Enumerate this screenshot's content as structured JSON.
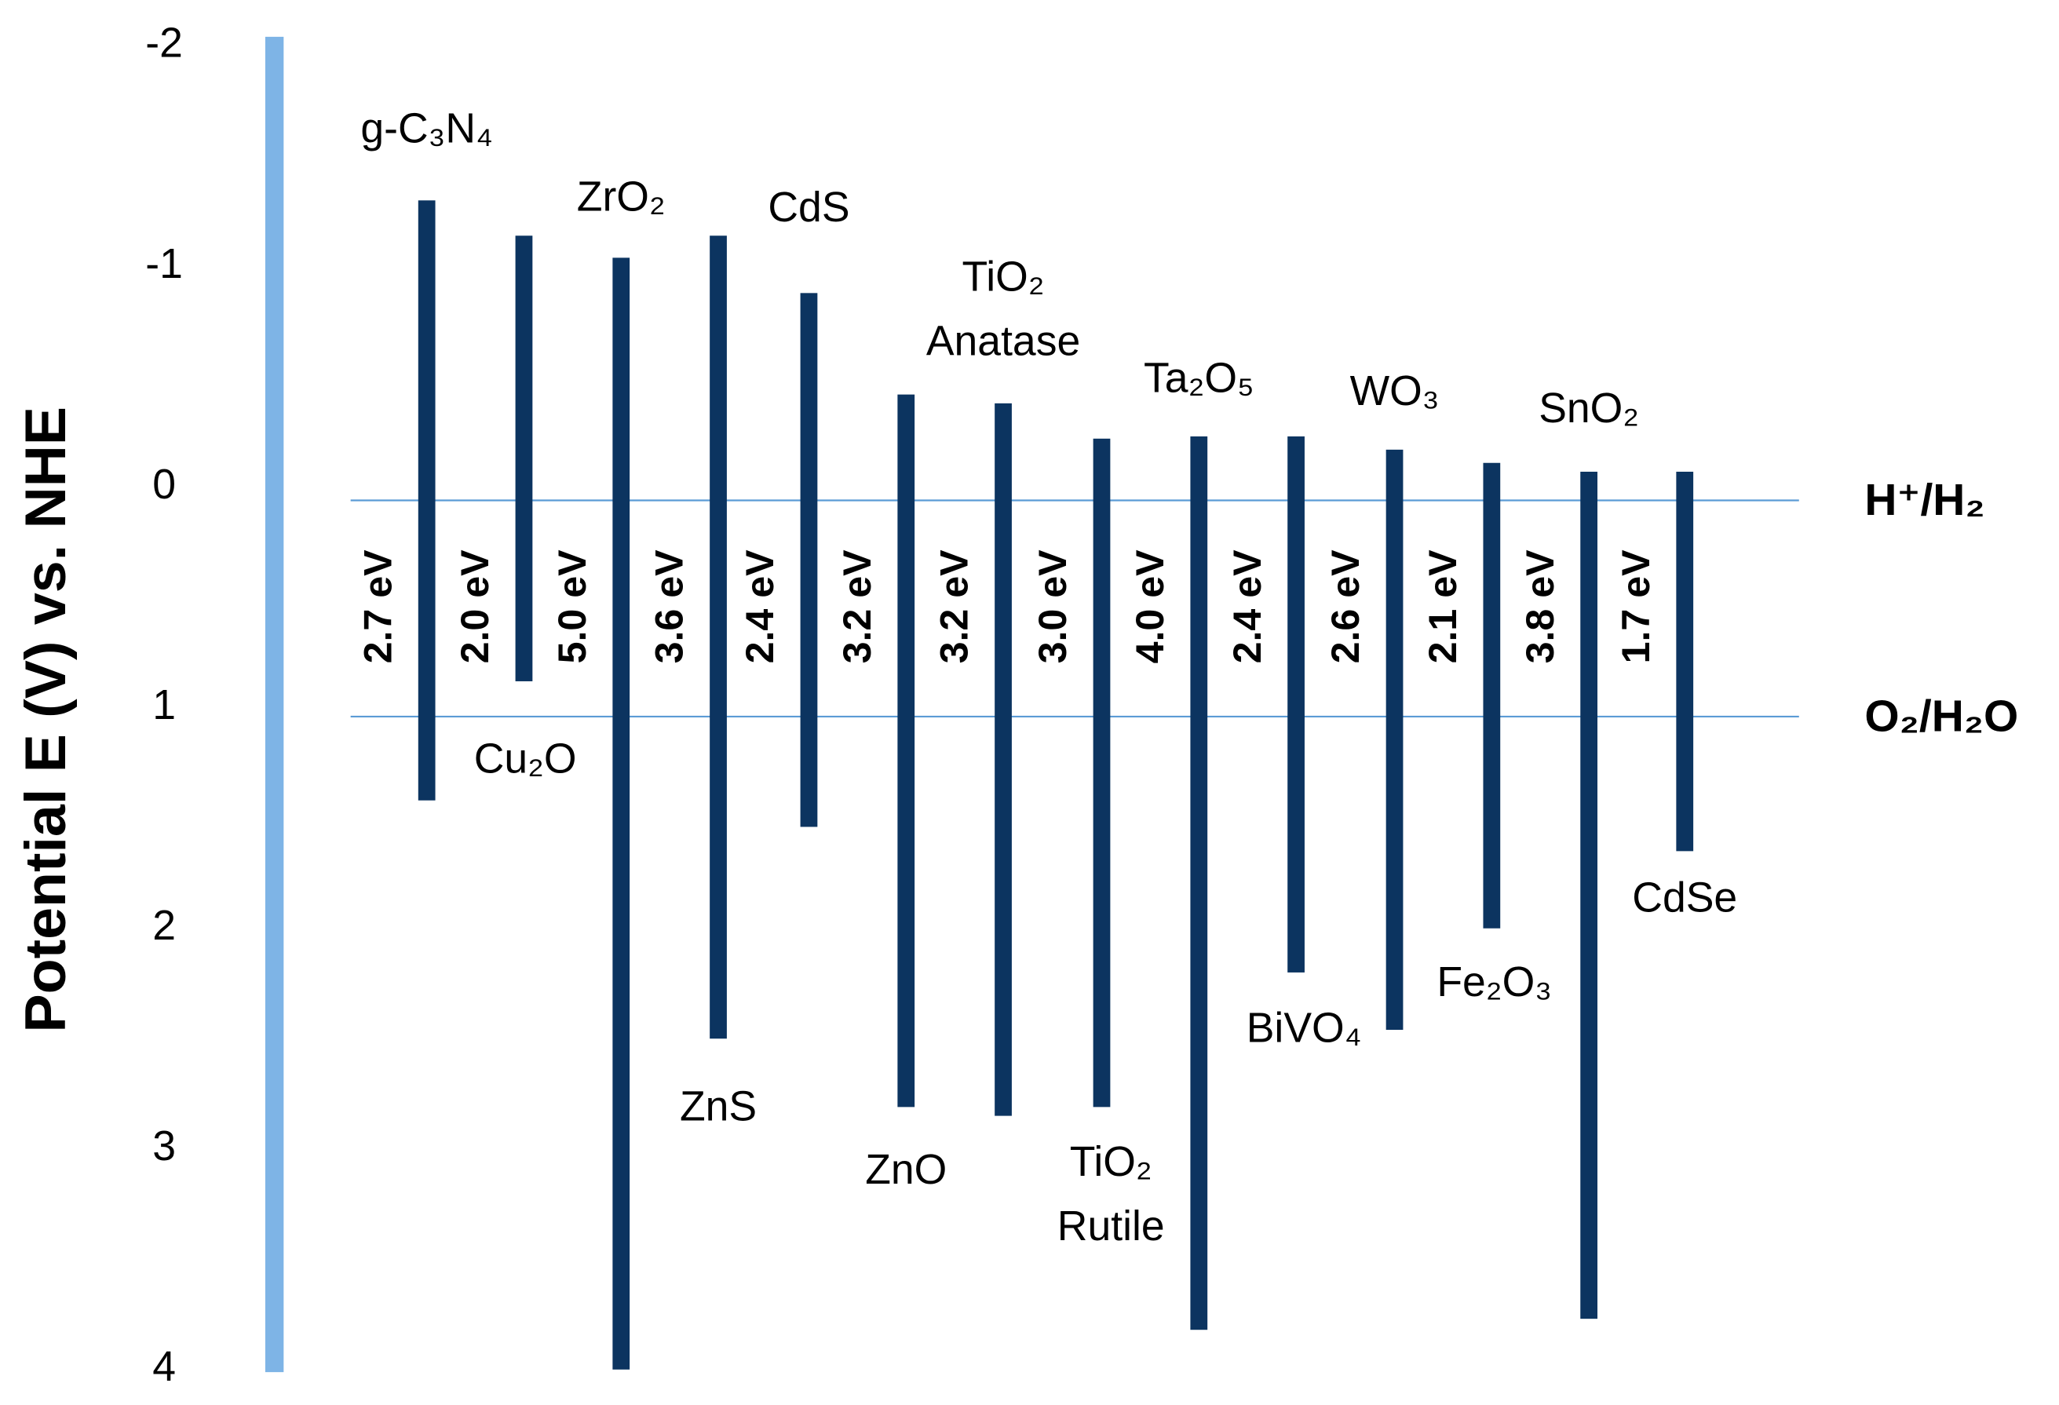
{
  "chart_data": {
    "type": "bandgap",
    "y_label": "Potential E (V) vs. NHE",
    "ylim": [
      -2,
      4
    ],
    "yticks": [
      -2,
      -1,
      0,
      1,
      2,
      3,
      4
    ],
    "categories": [
      "g-C₃N₄",
      "Cu₂O",
      "ZrO₂",
      "ZnS",
      "CdS",
      "ZnO",
      [
        "TiO₂",
        "Anatase"
      ],
      [
        "TiO₂",
        "Rutile"
      ],
      "Ta₂O₅",
      "BiVO₄",
      "WO₃",
      "Fe₂O₃",
      "SnO₂",
      "CdSe"
    ],
    "conduction_band": [
      -1.3,
      -1.14,
      -1.04,
      -1.14,
      -0.88,
      -0.42,
      -0.38,
      -0.22,
      -0.23,
      -0.23,
      -0.17,
      -0.11,
      -0.07,
      -0.07
    ],
    "valence_band": [
      1.42,
      0.88,
      4.0,
      2.5,
      1.54,
      2.81,
      2.85,
      2.81,
      3.82,
      2.2,
      2.46,
      2.0,
      3.77,
      1.65
    ],
    "band_gap": {
      "values": [
        2.7,
        2.0,
        5.0,
        3.6,
        2.4,
        3.2,
        3.2,
        3.0,
        4.0,
        2.4,
        2.6,
        2.1,
        3.8,
        1.7
      ],
      "value_labels": [
        "2.7 eV",
        "2.0 eV",
        "5.0 eV",
        "3.6 eV",
        "2.4 eV",
        "3.2 eV",
        "3.2 eV",
        "3.0 eV",
        "4.0 eV",
        "2.4 eV",
        "2.6 eV",
        "2.1 eV",
        "3.8 eV",
        "1.7 eV"
      ]
    },
    "bar_color": "#0c3460",
    "axis_color": "#7eb4e6",
    "reference_color": "#5b9bd5",
    "references": [
      {
        "label": "H⁺/H₂",
        "value": 0.06
      },
      {
        "label": "O₂/H₂O",
        "value": 1.04
      }
    ]
  }
}
